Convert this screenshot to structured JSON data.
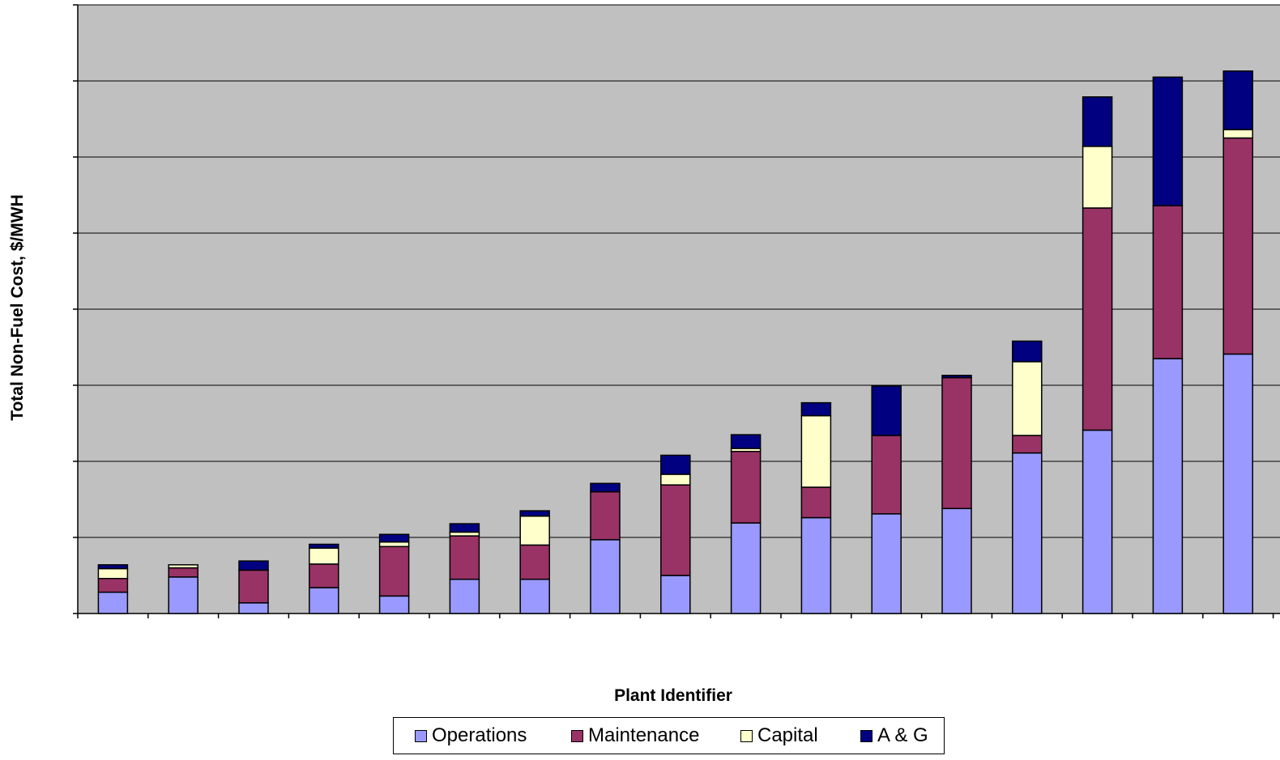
{
  "chart_data": {
    "type": "bar",
    "stacked": true,
    "title": "",
    "xlabel": "Plant Identifier",
    "ylabel": "Total Non-Fuel Cost, $/MWH",
    "ylim": [
      0,
      8
    ],
    "grid": true,
    "legend_position": "bottom",
    "categories": [
      "",
      "",
      "",
      "",
      "",
      "",
      "",
      "",
      "",
      "",
      "",
      "",
      "",
      "",
      "",
      "",
      ""
    ],
    "series": [
      {
        "name": "Operations",
        "color": "#9999ff",
        "values": [
          0.28,
          0.48,
          0.14,
          0.34,
          0.23,
          0.45,
          0.45,
          0.97,
          0.5,
          1.19,
          1.26,
          1.31,
          1.38,
          2.11,
          2.41,
          3.35,
          3.41
        ]
      },
      {
        "name": "Maintenance",
        "color": "#993366",
        "values": [
          0.18,
          0.12,
          0.43,
          0.31,
          0.65,
          0.57,
          0.45,
          0.63,
          1.19,
          0.94,
          0.4,
          1.03,
          1.72,
          0.23,
          2.92,
          2.01,
          2.84
        ]
      },
      {
        "name": "Capital",
        "color": "#ffffcc",
        "values": [
          0.13,
          0.04,
          0.0,
          0.21,
          0.06,
          0.05,
          0.38,
          0.0,
          0.14,
          0.04,
          0.94,
          0.0,
          0.0,
          0.97,
          0.81,
          0.0,
          0.11
        ]
      },
      {
        "name": "A & G",
        "color": "#000080",
        "values": [
          0.05,
          0.0,
          0.12,
          0.05,
          0.1,
          0.11,
          0.07,
          0.11,
          0.25,
          0.18,
          0.17,
          0.65,
          0.03,
          0.27,
          0.65,
          1.69,
          0.77
        ]
      }
    ]
  },
  "style": {
    "plot_background": "#c0c0c0",
    "gridline_color": "#000000",
    "bar_outline": "#000000"
  }
}
